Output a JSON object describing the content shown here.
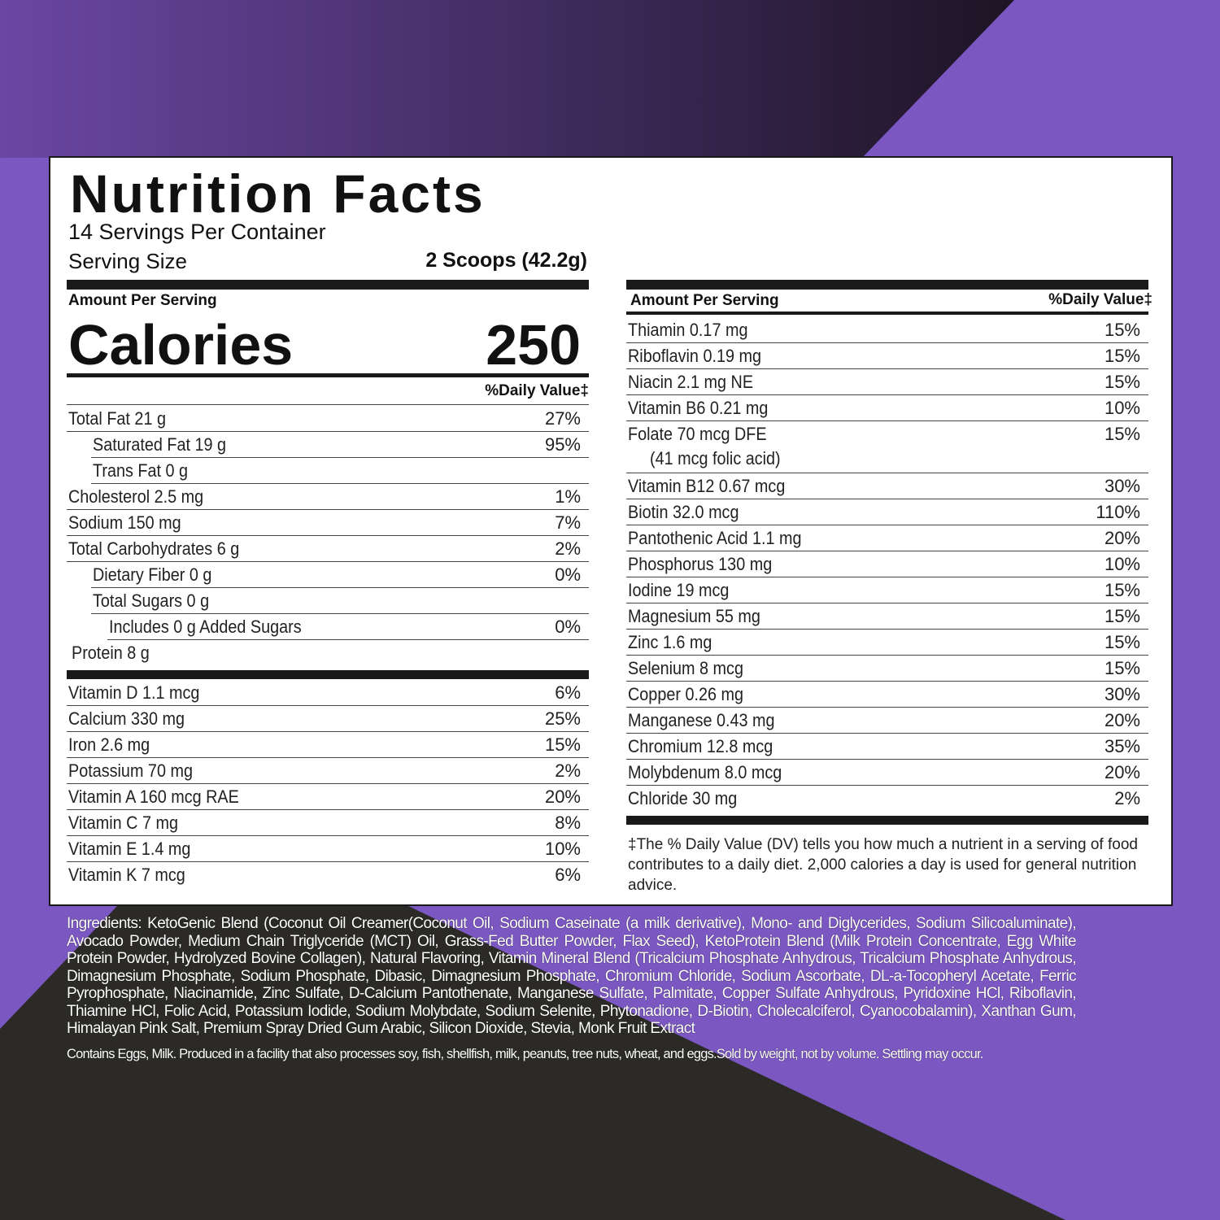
{
  "colors": {
    "purple": "#7b57c2",
    "dark": "#2b2a27",
    "gradient_start": "#6a47a3",
    "gradient_end": "#1d1424"
  },
  "label": {
    "title": "Nutrition Facts",
    "servings_per_container": "14 Servings Per Container",
    "serving_size_label": "Serving Size",
    "serving_size_value": "2 Scoops (42.2g)",
    "amount_per_serving": "Amount Per Serving",
    "calories_label": "Calories",
    "calories_value": "250",
    "daily_value_header": "%Daily Value‡"
  },
  "left_nutrients": [
    {
      "label": "Total Fat  21 g",
      "dv": "27%",
      "indent": 0
    },
    {
      "label": "Saturated Fat  19 g",
      "dv": "95%",
      "indent": 1
    },
    {
      "label": "Trans Fat  0 g",
      "dv": "",
      "indent": 1
    },
    {
      "label": "Cholesterol  2.5 mg",
      "dv": "1%",
      "indent": 0
    },
    {
      "label": "Sodium  150 mg",
      "dv": "7%",
      "indent": 0
    },
    {
      "label": "Total Carbohydrates  6 g",
      "dv": "2%",
      "indent": 0
    },
    {
      "label": "Dietary Fiber  0 g",
      "dv": "0%",
      "indent": 1
    },
    {
      "label": "Total Sugars  0 g",
      "dv": "",
      "indent": 1
    },
    {
      "label": "Includes 0 g Added Sugars",
      "dv": "0%",
      "indent": 2
    },
    {
      "label": "Protein  8 g",
      "dv": "",
      "indent": 0
    }
  ],
  "left_vitamins": [
    {
      "label": "Vitamin D  1.1 mcg",
      "dv": "6%"
    },
    {
      "label": "Calcium  330 mg",
      "dv": "25%"
    },
    {
      "label": "Iron 2.6 mg",
      "dv": "15%"
    },
    {
      "label": "Potassium 70 mg",
      "dv": "2%"
    },
    {
      "label": "Vitamin A 160 mcg RAE",
      "dv": "20%"
    },
    {
      "label": "Vitamin C 7 mg",
      "dv": "8%"
    },
    {
      "label": "Vitamin E 1.4 mg",
      "dv": "10%"
    },
    {
      "label": "Vitamin K  7 mcg",
      "dv": "6%"
    }
  ],
  "right_nutrients": [
    {
      "label": "Thiamin 0.17 mg",
      "dv": "15%"
    },
    {
      "label": "Riboflavin 0.19 mg",
      "dv": "15%"
    },
    {
      "label": "Niacin 2.1 mg NE",
      "dv": "15%"
    },
    {
      "label": "Vitamin B6 0.21 mg",
      "dv": "10%"
    },
    {
      "label": "Folate 70 mcg DFE",
      "dv": "15%",
      "sub": "(41 mcg folic acid)"
    },
    {
      "label": "Vitamin B12 0.67 mcg",
      "dv": "30%"
    },
    {
      "label": "Biotin 32.0 mcg",
      "dv": "110%"
    },
    {
      "label": "Pantothenic Acid 1.1 mg",
      "dv": "20%"
    },
    {
      "label": "Phosphorus 130 mg",
      "dv": "10%"
    },
    {
      "label": "Iodine 19 mcg",
      "dv": "15%"
    },
    {
      "label": "Magnesium 55 mg",
      "dv": "15%"
    },
    {
      "label": "Zinc 1.6 mg",
      "dv": "15%"
    },
    {
      "label": "Selenium 8 mcg",
      "dv": "15%"
    },
    {
      "label": "Copper 0.26 mg",
      "dv": "30%"
    },
    {
      "label": "Manganese 0.43 mg",
      "dv": "20%"
    },
    {
      "label": "Chromium 12.8 mcg",
      "dv": "35%"
    },
    {
      "label": "Molybdenum 8.0 mcg",
      "dv": "20%"
    },
    {
      "label": "Chloride 30 mg",
      "dv": "2%"
    }
  ],
  "footnote": "‡The % Daily Value (DV) tells you how much a nutrient in a serving of food contributes to a daily diet. 2,000 calories a day is used for general nutrition advice.",
  "ingredients": "Ingredients: KetoGenic Blend (Coconut Oil Creamer(Coconut Oil, Sodium Caseinate (a milk derivative), Mono- and Diglycerides, Sodium Silicoaluminate), Avocado Powder, Medium Chain Triglyceride (MCT) Oil,  Grass-Fed Butter Powder, Flax Seed), KetoProtein Blend (Milk Protein Concentrate, Egg White Protein Powder, Hydrolyzed Bovine Collagen), Natural Flavoring, Vitamin Mineral Blend (Tricalcium Phosphate Anhydrous, Tricalcium Phosphate Anhydrous, Dimagnesium Phosphate, Sodium Phosphate, Dibasic, Dimagnesium Phosphate, Chromium Chloride, Sodium Ascorbate, DL-a-Tocopheryl Acetate, Ferric Pyrophosphate, Niacinamide, Zinc Sulfate, D-Calcium Pantothenate, Manganese Sulfate, Palmitate, Copper Sulfate Anhydrous, Pyridoxine HCl, Riboflavin, Thiamine HCl, Folic Acid, Potassium Iodide, Sodium Molybdate, Sodium Selenite, Phytonadione, D-Biotin, Cholecalciferol, Cyanocobalamin), Xanthan Gum, Himalayan Pink Salt, Premium Spray Dried Gum Arabic, Silicon Dioxide, Stevia, Monk Fruit Extract",
  "allergens": "Contains Eggs, Milk. Produced in a facility that also processes soy, fish, shellfish, milk, peanuts, tree nuts, wheat, and eggs.Sold by weight, not by volume. Settling may occur."
}
